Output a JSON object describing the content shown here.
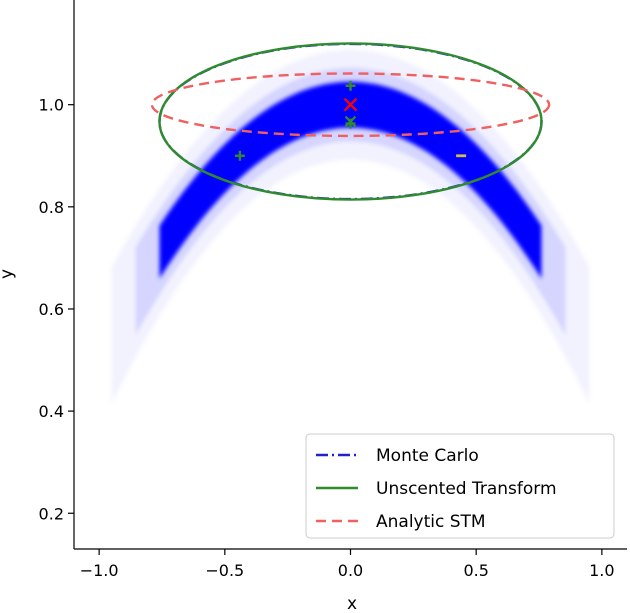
{
  "chart_data": {
    "type": "scatter",
    "title": "",
    "xlabel": "x",
    "ylabel": "y",
    "xlim": [
      -1.1,
      1.1
    ],
    "ylim": [
      0.13,
      1.205
    ],
    "xticks": [
      -1.0,
      -0.5,
      0.0,
      0.5,
      1.0
    ],
    "xtick_labels": [
      "−1.0",
      "−0.5",
      "0.0",
      "0.5",
      "1.0"
    ],
    "yticks": [
      0.2,
      0.4,
      0.6,
      0.8,
      1.0
    ],
    "ytick_labels": [
      "0.2",
      "0.4",
      "0.6",
      "0.8",
      "1.0"
    ],
    "grid": false,
    "legend_position": "bottom-right",
    "point_cloud": {
      "color": "#0000ff",
      "curve": "y = 1 - 0.5 * x^2 (approx.)",
      "x_range": [
        -0.95,
        0.95
      ]
    },
    "series": [
      {
        "name": "Monte Carlo",
        "kind": "ellipse",
        "style": "dashdot",
        "color": "#2222cc",
        "center": [
          0.0,
          0.967
        ],
        "semi_axes": [
          0.76,
          0.152
        ]
      },
      {
        "name": "Unscented Transform",
        "kind": "ellipse",
        "style": "solid",
        "color": "#2e8b2e",
        "center": [
          0.0,
          0.967
        ],
        "semi_axes": [
          0.76,
          0.153
        ]
      },
      {
        "name": "Analytic STM",
        "kind": "ellipse",
        "style": "dashed",
        "color": "#f06060",
        "center": [
          0.0,
          1.0
        ],
        "semi_axes": [
          0.79,
          0.061
        ]
      }
    ],
    "markers": [
      {
        "kind": "plus",
        "color": "#2e8b2e",
        "x": -0.44,
        "y": 0.9
      },
      {
        "kind": "plus",
        "color": "#2e8b2e",
        "x": 0.0,
        "y": 1.037
      },
      {
        "kind": "plus",
        "color": "#2e8b2e",
        "x": 0.0,
        "y": 0.963
      },
      {
        "kind": "minus",
        "color": "#d4b84a",
        "x": 0.44,
        "y": 0.9
      },
      {
        "kind": "x",
        "color": "#2e8b2e",
        "x": 0.0,
        "y": 0.967
      },
      {
        "kind": "x",
        "color": "#ff0000",
        "x": 0.0,
        "y": 1.0
      }
    ]
  }
}
